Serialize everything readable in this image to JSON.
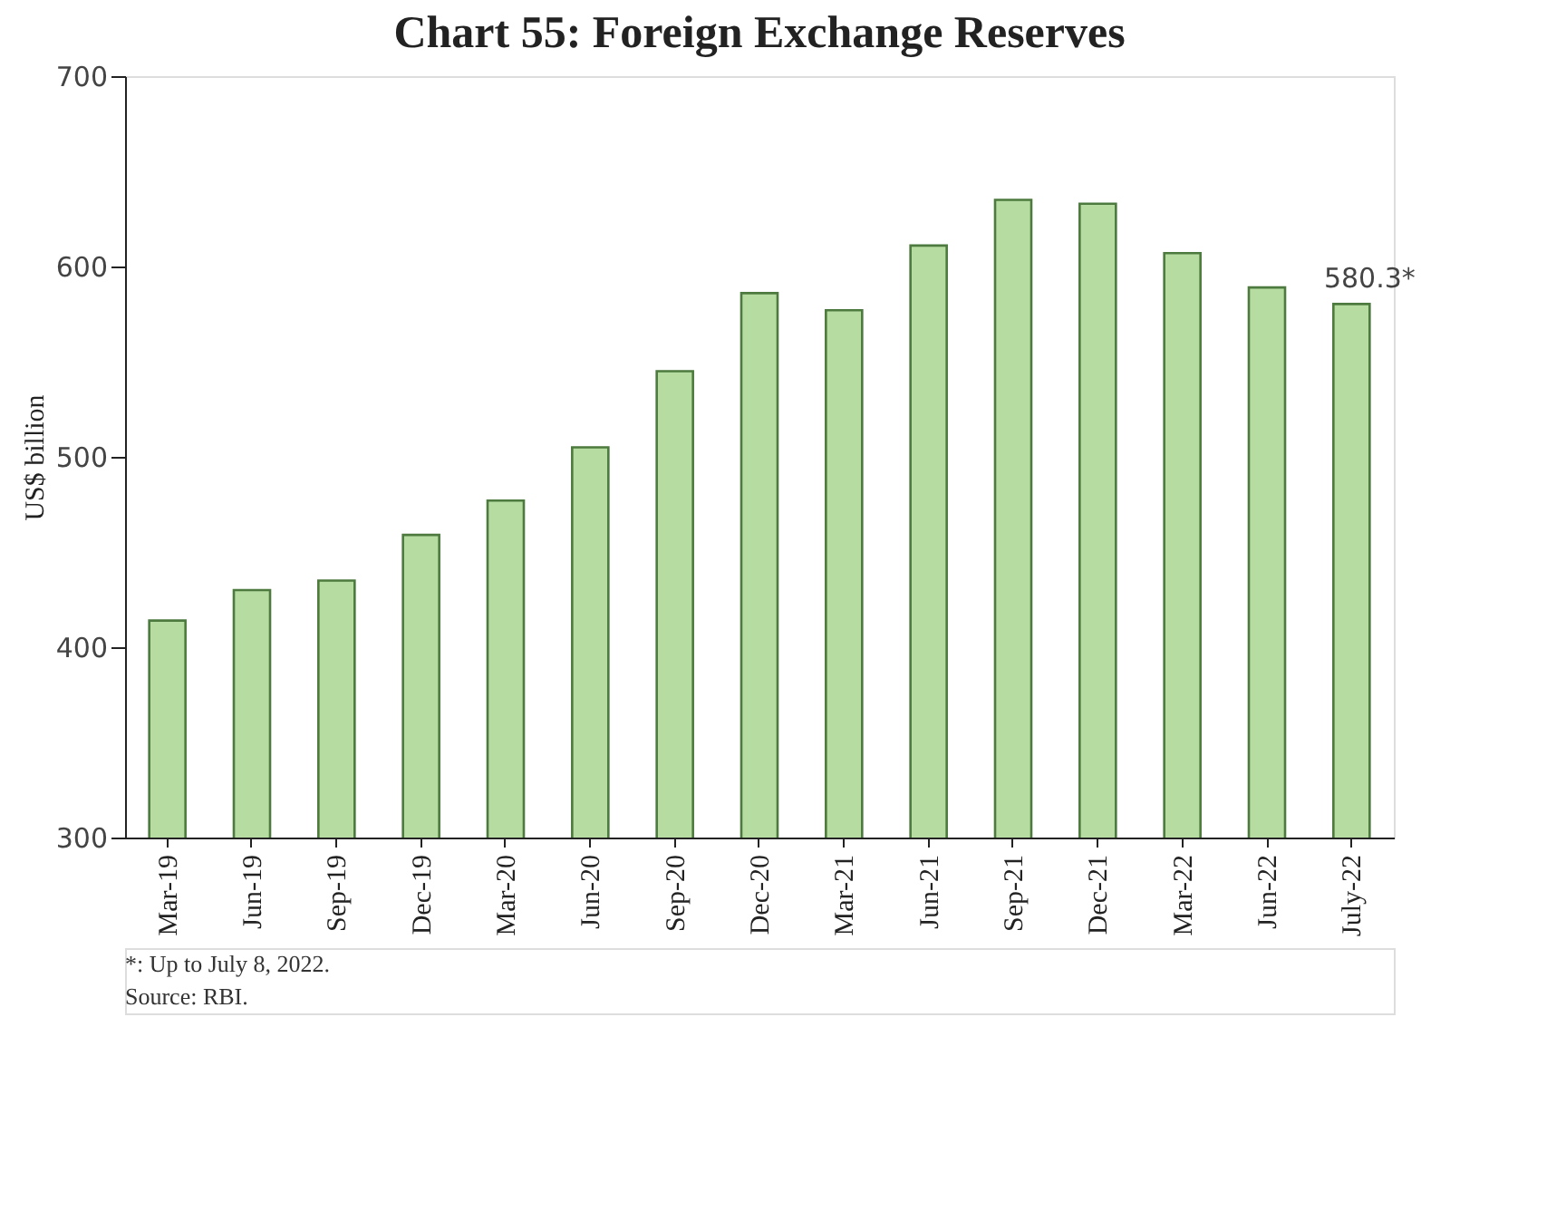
{
  "chart_data": {
    "type": "bar",
    "title": "Chart 55: Foreign Exchange Reserves",
    "ylabel": "US$ billion",
    "categories": [
      "Mar-19",
      "Jun-19",
      "Sep-19",
      "Dec-19",
      "Mar-20",
      "Jun-20",
      "Sep-20",
      "Dec-20",
      "Mar-21",
      "Jun-21",
      "Sep-21",
      "Dec-21",
      "Mar-22",
      "Jun-22",
      "July-22"
    ],
    "values": [
      414,
      430,
      435,
      459,
      477,
      505,
      545,
      586,
      577,
      611,
      635,
      633,
      607,
      589,
      580.3
    ],
    "value_labels": [
      null,
      null,
      null,
      null,
      null,
      null,
      null,
      null,
      null,
      null,
      null,
      null,
      null,
      null,
      "580.3*"
    ],
    "color": "#b6dca2",
    "ylim": [
      300,
      700
    ],
    "yticks": [
      300,
      400,
      500,
      600,
      700
    ],
    "grid": false,
    "annotations": [
      "*: Up to July 8, 2022.",
      "Source: RBI."
    ]
  }
}
